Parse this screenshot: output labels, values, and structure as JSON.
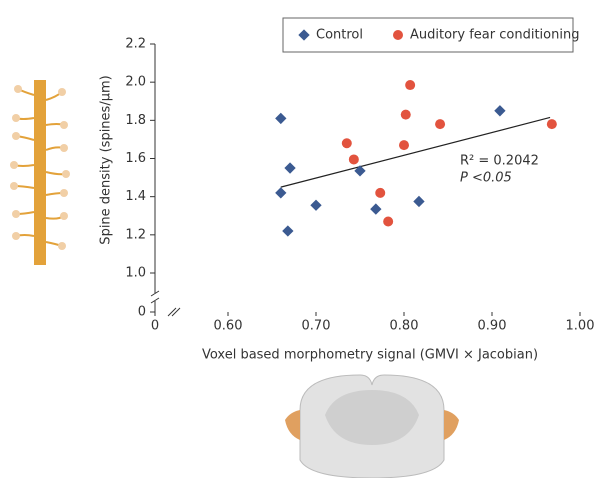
{
  "chart_data": {
    "type": "scatter",
    "xlabel": "Voxel based morphometry signal (GMVI × Jacobian)",
    "ylabel": "Spine density (spines/µm)",
    "xlim": [
      0.6,
      1.0
    ],
    "ylim": [
      1.0,
      2.2
    ],
    "xticks": [
      0,
      {
        "value": 0.6,
        "label": "0.60"
      },
      {
        "value": 0.7,
        "label": "0.70"
      },
      {
        "value": 0.8,
        "label": "0.80"
      },
      {
        "value": 0.9,
        "label": "0.90"
      },
      {
        "value": 1.0,
        "label": "1.00"
      }
    ],
    "yticks": [
      0,
      {
        "value": 1.0,
        "label": "1.0"
      },
      1.2,
      1.4,
      1.6,
      1.8,
      {
        "value": 2.0,
        "label": "2.0"
      },
      2.2
    ],
    "axis_break": true,
    "legend": "top-right",
    "series": [
      {
        "name": "Control",
        "color": "#3b5a91",
        "marker": "diamond",
        "x": [
          0.66,
          0.66,
          0.668,
          0.6705,
          0.7,
          0.75,
          0.768,
          0.817,
          0.909
        ],
        "values": [
          1.81,
          1.42,
          1.22,
          1.55,
          1.355,
          1.535,
          1.335,
          1.375,
          1.85
        ]
      },
      {
        "name": "Auditory fear conditioning",
        "color": "#e2533e",
        "marker": "circle",
        "x": [
          0.735,
          0.743,
          0.773,
          0.782,
          0.802,
          0.807,
          0.8,
          0.841,
          0.968
        ],
        "values": [
          1.68,
          1.595,
          1.42,
          1.27,
          1.83,
          1.985,
          1.67,
          1.78,
          1.78
        ]
      }
    ],
    "trendline": {
      "x": [
        0.66,
        0.966
      ],
      "values": [
        1.45,
        1.815
      ]
    },
    "annotations": [
      "R² = 0.2042",
      "P <0.05"
    ]
  }
}
